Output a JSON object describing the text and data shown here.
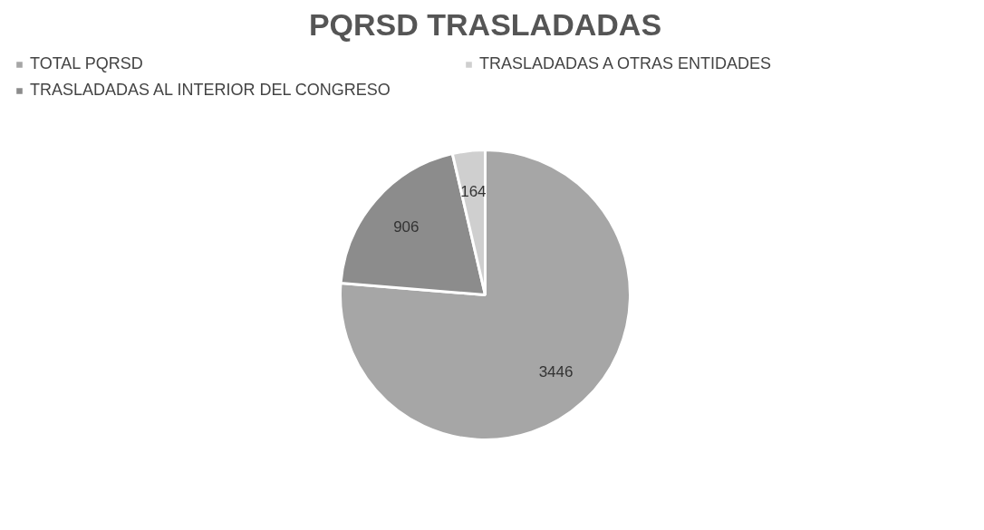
{
  "chart_data": {
    "type": "pie",
    "title": "PQRSD TRASLADADAS",
    "categories": [
      "TOTAL PQRSD",
      "TRASLADADAS AL INTERIOR DEL CONGRESO",
      "TRASLADADAS A OTRAS ENTIDADES"
    ],
    "values": [
      3446,
      906,
      164
    ],
    "colors": [
      "#a6a6a6",
      "#8c8c8c",
      "#cfcfcf"
    ],
    "data_labels": true,
    "legend": "top"
  }
}
